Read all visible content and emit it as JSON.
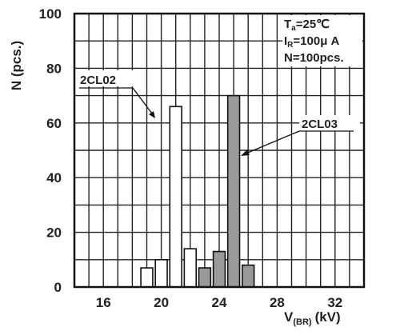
{
  "chart_data": {
    "type": "bar",
    "title": "",
    "ylabel": "N (pcs.)",
    "xlabel_main": "V",
    "xlabel_sub": "(BR)",
    "xlabel_unit": "(kV)",
    "xlim": [
      14,
      34
    ],
    "ylim": [
      0,
      100
    ],
    "x_ticks": [
      16,
      20,
      24,
      28,
      32
    ],
    "y_ticks": [
      0,
      20,
      40,
      60,
      80,
      100
    ],
    "grid": true,
    "conditions": {
      "ta_main": "T",
      "ta_sub": "a",
      "ta_rest": "=25℃",
      "ir_main": "I",
      "ir_sub": "R",
      "ir_rest": "=100μ A",
      "n_line": "N=100pcs."
    },
    "series": [
      {
        "name": "2CL02",
        "color": "#ffffff",
        "x": [
          19,
          20,
          21,
          22
        ],
        "values": [
          7,
          10,
          66,
          14
        ]
      },
      {
        "name": "2CL03",
        "color": "#999999",
        "x": [
          23,
          24,
          25,
          26
        ],
        "values": [
          7,
          13,
          70,
          8
        ]
      }
    ]
  }
}
